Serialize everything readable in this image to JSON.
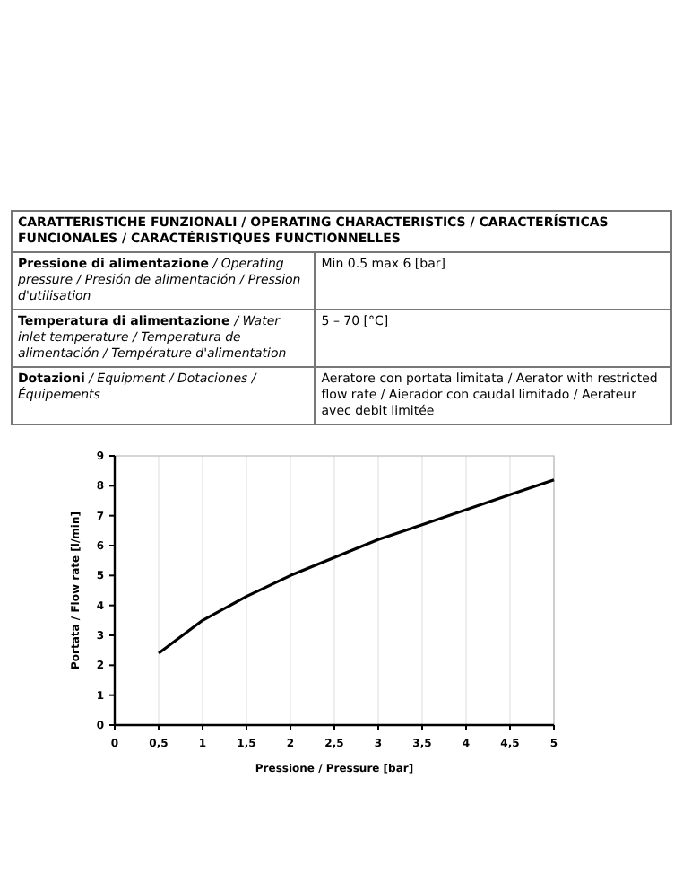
{
  "chart_data": [
    {
      "type": "other",
      "title": "CARATTERISTICHE FUNZIONALI  / OPERATING CHARACTERISTICS / CARACTERÍSTICAS FUNCIONALES / CARACTÉRISTIQUES FUNCTIONNELLES",
      "annotations": [
        "Pressione di alimentazione / Operating pressure / Presión de alimentación / Pression d'utilisation",
        "Min 0.5 max 6 [bar]",
        "Temperatura di alimentazione  / Water inlet temperature / Temperatura de alimentación / Température d'alimentation",
        "5 – 70 [°C]",
        "Dotazioni / Equipment / Dotaciones / Équipements",
        "Aeratore con portata limitata / Aerator with restricted flow rate / Aierador con caudal limitado / Aerateur avec debit limitée"
      ]
    },
    {
      "type": "line",
      "xlabel": "Pressione / Pressure [bar]",
      "ylabel": "Portata / Flow rate [l/min]",
      "x": [
        0.5,
        1,
        1.5,
        2,
        2.5,
        3,
        3.5,
        4,
        4.5,
        5
      ],
      "series": [
        {
          "color": "#000000",
          "values": [
            2.4,
            3.5,
            4.3,
            5.0,
            5.6,
            6.2,
            6.7,
            7.2,
            7.7,
            8.2
          ]
        }
      ],
      "xlim": [
        0,
        5
      ],
      "xticks": [
        0,
        {
          "value": 0.5,
          "label": "0,5"
        },
        1,
        {
          "value": 1.5,
          "label": "1,5"
        },
        2,
        {
          "value": 2.5,
          "label": "2,5"
        },
        3,
        {
          "value": 3.5,
          "label": "3,5"
        },
        4,
        {
          "value": 4.5,
          "label": "4,5"
        },
        5
      ],
      "ylim": [
        0,
        9
      ],
      "yticks": [
        0,
        1,
        2,
        3,
        4,
        5,
        6,
        7,
        8,
        9
      ],
      "grid": "x",
      "marker": "none",
      "line_style": "solid"
    }
  ]
}
